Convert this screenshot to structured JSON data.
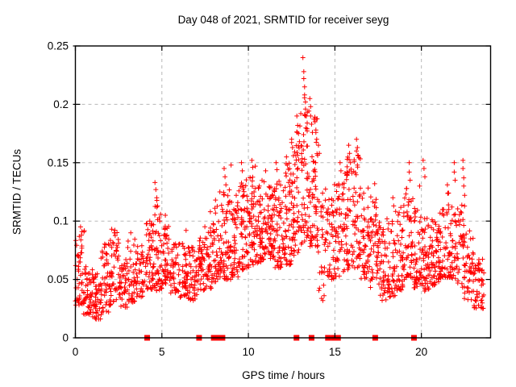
{
  "chart_data": {
    "type": "scatter",
    "title": "Day 048 of 2021, SRMTID for receiver seyg",
    "xlabel": "GPS time / hours",
    "ylabel": "SRMTID / TECUs",
    "xlim": [
      0,
      24
    ],
    "ylim": [
      0,
      0.25
    ],
    "xticks": [
      0,
      5,
      10,
      15,
      20
    ],
    "xtick_labels": [
      "0",
      "5",
      "10",
      "15",
      "20"
    ],
    "yticks": [
      0,
      0.05,
      0.1,
      0.15,
      0.2,
      0.25
    ],
    "ytick_labels": [
      "0",
      "0.05",
      "0.1",
      "0.15",
      "0.2",
      "0.25"
    ],
    "grid": true,
    "legend": "none",
    "marker": "plus",
    "marker_color": "#ff0000",
    "grid_color": "#b8b8b8",
    "border_color": "#000000",
    "background_color": "#ffffff",
    "density_bands": [
      [
        0.0,
        0.5,
        48,
        0.028,
        0.092
      ],
      [
        0.5,
        1.0,
        48,
        0.02,
        0.062
      ],
      [
        1.0,
        1.5,
        46,
        0.016,
        0.055
      ],
      [
        1.5,
        2.0,
        46,
        0.022,
        0.088
      ],
      [
        2.0,
        2.5,
        46,
        0.028,
        0.094
      ],
      [
        2.5,
        3.0,
        42,
        0.025,
        0.068
      ],
      [
        3.0,
        3.5,
        42,
        0.03,
        0.088
      ],
      [
        3.5,
        4.0,
        42,
        0.035,
        0.08
      ],
      [
        4.0,
        4.5,
        48,
        0.04,
        0.098
      ],
      [
        4.5,
        5.0,
        50,
        0.04,
        0.118
      ],
      [
        5.0,
        5.5,
        46,
        0.045,
        0.098
      ],
      [
        5.5,
        6.0,
        42,
        0.038,
        0.082
      ],
      [
        6.0,
        6.5,
        42,
        0.034,
        0.086
      ],
      [
        6.5,
        7.0,
        42,
        0.032,
        0.078
      ],
      [
        7.0,
        7.5,
        44,
        0.04,
        0.088
      ],
      [
        7.5,
        8.0,
        46,
        0.042,
        0.102
      ],
      [
        8.0,
        8.5,
        48,
        0.048,
        0.115
      ],
      [
        8.5,
        9.0,
        52,
        0.05,
        0.128
      ],
      [
        9.0,
        9.5,
        52,
        0.052,
        0.126
      ],
      [
        9.5,
        10.0,
        55,
        0.058,
        0.136
      ],
      [
        10.0,
        10.5,
        55,
        0.06,
        0.14
      ],
      [
        10.5,
        11.0,
        55,
        0.065,
        0.136
      ],
      [
        11.0,
        11.5,
        55,
        0.068,
        0.132
      ],
      [
        11.5,
        12.0,
        55,
        0.06,
        0.136
      ],
      [
        12.0,
        12.5,
        55,
        0.062,
        0.15
      ],
      [
        12.5,
        13.0,
        56,
        0.07,
        0.178
      ],
      [
        13.0,
        13.5,
        58,
        0.08,
        0.215
      ],
      [
        13.5,
        14.0,
        56,
        0.078,
        0.19
      ],
      [
        14.0,
        14.5,
        30,
        0.028,
        0.128
      ],
      [
        14.5,
        15.0,
        40,
        0.05,
        0.12
      ],
      [
        15.0,
        15.5,
        46,
        0.052,
        0.132
      ],
      [
        15.5,
        16.0,
        50,
        0.058,
        0.155
      ],
      [
        16.0,
        16.5,
        50,
        0.06,
        0.162
      ],
      [
        16.5,
        17.0,
        46,
        0.05,
        0.13
      ],
      [
        17.0,
        17.5,
        46,
        0.042,
        0.122
      ],
      [
        17.5,
        18.0,
        46,
        0.032,
        0.1
      ],
      [
        18.0,
        18.5,
        46,
        0.035,
        0.105
      ],
      [
        18.5,
        19.0,
        46,
        0.04,
        0.112
      ],
      [
        19.0,
        19.5,
        46,
        0.05,
        0.132
      ],
      [
        19.5,
        20.0,
        46,
        0.042,
        0.112
      ],
      [
        20.0,
        20.5,
        50,
        0.04,
        0.105
      ],
      [
        20.5,
        21.0,
        50,
        0.045,
        0.102
      ],
      [
        21.0,
        21.5,
        46,
        0.05,
        0.112
      ],
      [
        21.5,
        22.0,
        46,
        0.05,
        0.125
      ],
      [
        22.0,
        22.5,
        42,
        0.04,
        0.115
      ],
      [
        22.5,
        23.0,
        42,
        0.032,
        0.092
      ],
      [
        23.0,
        23.6,
        46,
        0.025,
        0.068
      ]
    ],
    "highlight_points": [
      [
        0.3,
        0.095
      ],
      [
        0.35,
        0.088
      ],
      [
        2.1,
        0.093
      ],
      [
        2.25,
        0.09
      ],
      [
        3.2,
        0.09
      ],
      [
        4.3,
        0.1
      ],
      [
        4.6,
        0.133
      ],
      [
        4.65,
        0.127
      ],
      [
        4.7,
        0.12
      ],
      [
        4.75,
        0.113
      ],
      [
        5.2,
        0.105
      ],
      [
        6.4,
        0.092
      ],
      [
        7.8,
        0.108
      ],
      [
        8.1,
        0.118
      ],
      [
        8.35,
        0.125
      ],
      [
        8.6,
        0.145
      ],
      [
        8.65,
        0.138
      ],
      [
        8.7,
        0.131
      ],
      [
        9.0,
        0.148
      ],
      [
        9.6,
        0.15
      ],
      [
        9.65,
        0.143
      ],
      [
        10.2,
        0.152
      ],
      [
        10.25,
        0.146
      ],
      [
        10.4,
        0.147
      ],
      [
        11.0,
        0.143
      ],
      [
        11.6,
        0.15
      ],
      [
        11.65,
        0.144
      ],
      [
        12.2,
        0.155
      ],
      [
        12.25,
        0.148
      ],
      [
        12.5,
        0.17
      ],
      [
        12.55,
        0.163
      ],
      [
        12.6,
        0.156
      ],
      [
        12.8,
        0.19
      ],
      [
        12.85,
        0.182
      ],
      [
        12.9,
        0.175
      ],
      [
        12.95,
        0.168
      ],
      [
        13.15,
        0.24
      ],
      [
        13.2,
        0.228
      ],
      [
        13.2,
        0.222
      ],
      [
        13.25,
        0.215
      ],
      [
        13.25,
        0.208
      ],
      [
        13.3,
        0.202
      ],
      [
        13.3,
        0.196
      ],
      [
        13.35,
        0.19
      ],
      [
        13.4,
        0.184
      ],
      [
        13.55,
        0.205
      ],
      [
        13.6,
        0.198
      ],
      [
        13.6,
        0.19
      ],
      [
        13.65,
        0.183
      ],
      [
        13.7,
        0.176
      ],
      [
        13.85,
        0.185
      ],
      [
        13.9,
        0.178
      ],
      [
        13.95,
        0.17
      ],
      [
        14.05,
        0.165
      ],
      [
        14.1,
        0.158
      ],
      [
        14.3,
        0.032
      ],
      [
        14.35,
        0.045
      ],
      [
        14.4,
        0.06
      ],
      [
        14.45,
        0.075
      ],
      [
        15.3,
        0.15
      ],
      [
        15.35,
        0.143
      ],
      [
        15.8,
        0.165
      ],
      [
        15.85,
        0.158
      ],
      [
        15.9,
        0.15
      ],
      [
        16.25,
        0.17
      ],
      [
        16.3,
        0.163
      ],
      [
        16.35,
        0.156
      ],
      [
        16.3,
        0.148
      ],
      [
        17.3,
        0.132
      ],
      [
        18.35,
        0.12
      ],
      [
        18.4,
        0.113
      ],
      [
        19.3,
        0.15
      ],
      [
        19.3,
        0.142
      ],
      [
        19.35,
        0.135
      ],
      [
        19.15,
        0.128
      ],
      [
        19.9,
        0.13
      ],
      [
        20.1,
        0.152
      ],
      [
        20.15,
        0.145
      ],
      [
        20.2,
        0.138
      ],
      [
        21.5,
        0.131
      ],
      [
        21.55,
        0.124
      ],
      [
        21.9,
        0.15
      ],
      [
        21.9,
        0.142
      ],
      [
        21.95,
        0.135
      ],
      [
        22.4,
        0.152
      ],
      [
        22.4,
        0.145
      ],
      [
        22.45,
        0.137
      ],
      [
        22.45,
        0.13
      ],
      [
        22.5,
        0.122
      ],
      [
        1.2,
        0.018
      ],
      [
        1.5,
        0.02
      ],
      [
        23.3,
        0.028
      ],
      [
        23.45,
        0.032
      ]
    ],
    "zero_axis_marks_hours": [
      4.15,
      7.15,
      8.0,
      8.1,
      8.2,
      8.3,
      8.4,
      8.5,
      12.78,
      13.65,
      14.6,
      14.92,
      15.05,
      15.18,
      17.33,
      19.57
    ]
  }
}
